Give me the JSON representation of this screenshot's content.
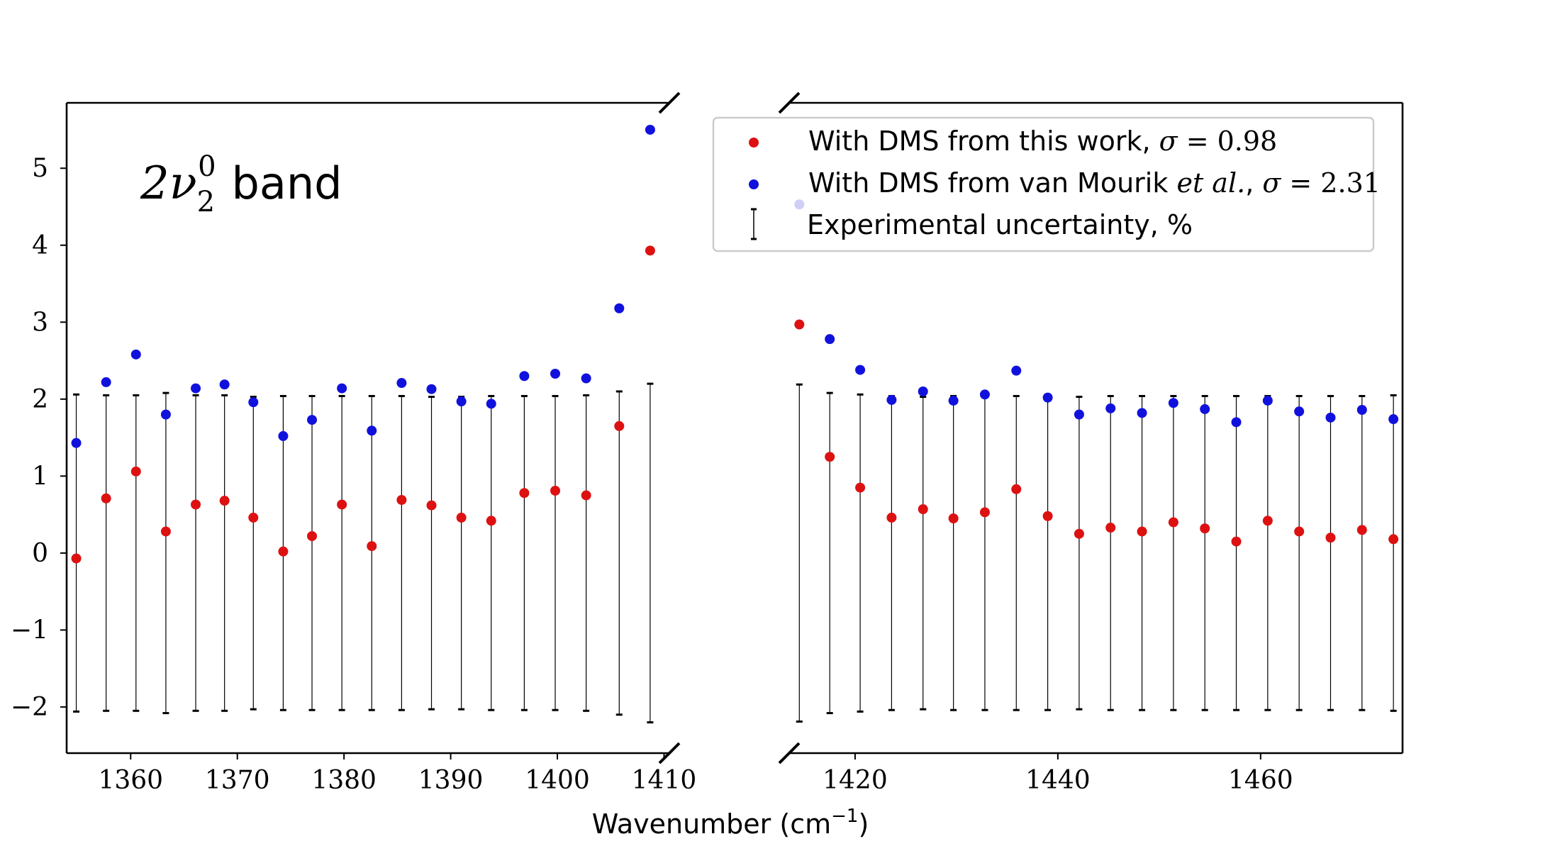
{
  "chart_data": {
    "type": "scatter",
    "title": "2ν₂⁰ band",
    "title_parts": {
      "base": "2ν",
      "sub": "2",
      "sup": "0",
      "rest": "band"
    },
    "xlabel": "Wavenumber (cm",
    "xlabel_sup": "−1",
    "xlabel_close": ")",
    "ylabel": "",
    "ylim": [
      -2.6,
      5.85
    ],
    "yticks": [
      -2,
      -1,
      0,
      1,
      2,
      3,
      4,
      5
    ],
    "ytick_labels": [
      "−2",
      "−1",
      "0",
      "1",
      "2",
      "3",
      "4",
      "5"
    ],
    "grid": false,
    "legend_position": "top-right",
    "broken_x_axis": true,
    "panels": [
      {
        "xlim": [
          1354,
          1410.5
        ],
        "xticks": [
          1360,
          1370,
          1380,
          1390,
          1400,
          1410
        ]
      },
      {
        "xlim": [
          1413.5,
          1474
        ],
        "xticks": [
          1420,
          1440,
          1460
        ]
      }
    ],
    "x": [
      1354.9,
      1357.7,
      1360.5,
      1363.3,
      1366.1,
      1368.8,
      1371.5,
      1374.3,
      1377.0,
      1379.8,
      1382.6,
      1385.4,
      1388.2,
      1391.0,
      1393.8,
      1396.9,
      1399.8,
      1402.7,
      1405.8,
      1408.7,
      1414.5,
      1417.5,
      1420.5,
      1423.6,
      1426.7,
      1429.7,
      1432.8,
      1435.9,
      1439.0,
      1442.1,
      1445.2,
      1448.3,
      1451.4,
      1454.5,
      1457.6,
      1460.7,
      1463.8,
      1466.9,
      1470.0,
      1473.1
    ],
    "series": [
      {
        "name": "With DMS from this work, σ = 0.98",
        "color": "#dd1111",
        "values": [
          -0.07,
          0.71,
          1.06,
          0.28,
          0.63,
          0.68,
          0.46,
          0.02,
          0.22,
          0.63,
          0.09,
          0.69,
          0.62,
          0.46,
          0.42,
          0.78,
          0.81,
          0.75,
          1.65,
          3.93,
          2.97,
          1.25,
          0.85,
          0.46,
          0.57,
          0.45,
          0.53,
          0.83,
          0.48,
          0.25,
          0.33,
          0.28,
          0.4,
          0.32,
          0.15,
          0.42,
          0.28,
          0.2,
          0.3,
          0.18
        ]
      },
      {
        "name": "With DMS from van Mourik et al., σ = 2.31",
        "color": "#1111dd",
        "values": [
          1.43,
          2.22,
          2.58,
          1.8,
          2.14,
          2.19,
          1.96,
          1.52,
          1.73,
          2.14,
          1.59,
          2.21,
          2.13,
          1.97,
          1.94,
          2.3,
          2.33,
          2.27,
          3.18,
          5.5,
          4.53,
          2.78,
          2.38,
          1.99,
          2.1,
          1.98,
          2.06,
          2.37,
          2.02,
          1.8,
          1.88,
          1.82,
          1.95,
          1.87,
          1.7,
          1.98,
          1.84,
          1.76,
          1.86,
          1.74
        ]
      },
      {
        "name": "Experimental uncertainty, %",
        "type": "errorbar",
        "values": [
          2.06,
          2.05,
          2.05,
          2.08,
          2.05,
          2.05,
          2.03,
          2.04,
          2.04,
          2.04,
          2.04,
          2.04,
          2.03,
          2.03,
          2.04,
          2.04,
          2.04,
          2.05,
          2.1,
          2.2,
          2.19,
          2.08,
          2.06,
          2.04,
          2.03,
          2.04,
          2.04,
          2.04,
          2.04,
          2.03,
          2.04,
          2.04,
          2.04,
          2.04,
          2.04,
          2.04,
          2.04,
          2.04,
          2.04,
          2.05
        ]
      }
    ],
    "legend": [
      {
        "label": "With DMS from this work, σ = 0.98",
        "marker": "dot",
        "color": "#dd1111"
      },
      {
        "label": "With DMS from van Mourik et al., σ = 2.31",
        "marker": "dot",
        "color": "#1111dd"
      },
      {
        "label": "Experimental uncertainty, %",
        "marker": "errorbar",
        "color": "#000000"
      }
    ],
    "legend_parts": {
      "red": [
        "With DMS from this work, ",
        "σ",
        " = 0.98"
      ],
      "blue": [
        "With DMS from van Mourik ",
        "et al.",
        ", ",
        "σ",
        " = 2.31"
      ],
      "err": "Experimental uncertainty, %"
    }
  }
}
